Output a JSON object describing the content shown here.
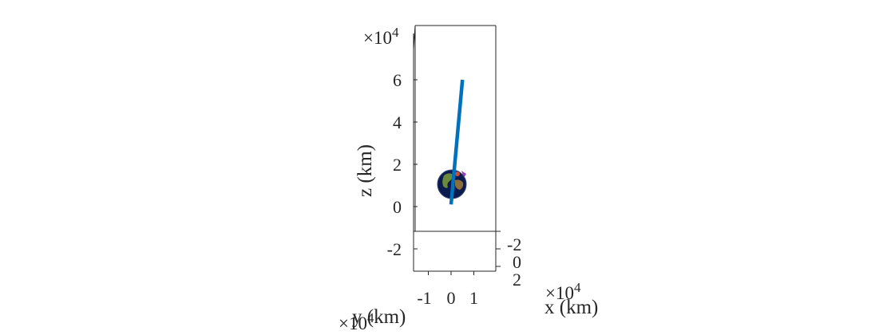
{
  "chart_data": {
    "type": "line",
    "title": "",
    "grid": false,
    "colors": {
      "trajectory": "#0072BD",
      "axes": "#262626",
      "earth_ocean": "#0b1b4d",
      "earth_land": "#6b8a3a"
    },
    "axes": {
      "x": {
        "label": "x (km)",
        "ticks": [
          -1,
          0,
          1
        ],
        "exponent": "×10^4",
        "range": [
          -2,
          2
        ]
      },
      "y": {
        "label": "y (km)",
        "ticks": [
          -2,
          0,
          2
        ],
        "exponent": "×10^4",
        "range": [
          -3,
          3
        ]
      },
      "z": {
        "label": "z (km)",
        "ticks": [
          -2,
          0,
          2,
          4,
          6
        ],
        "exponent": "×10^4",
        "range": [
          -3,
          8
        ]
      }
    },
    "series": [
      {
        "points_x": [
          0,
          0.5
        ],
        "points_z": [
          0.1,
          6.0
        ]
      }
    ],
    "earth_marker": {
      "x": 0,
      "z": 1.0,
      "label_icon": "earth-globe-icon"
    }
  }
}
